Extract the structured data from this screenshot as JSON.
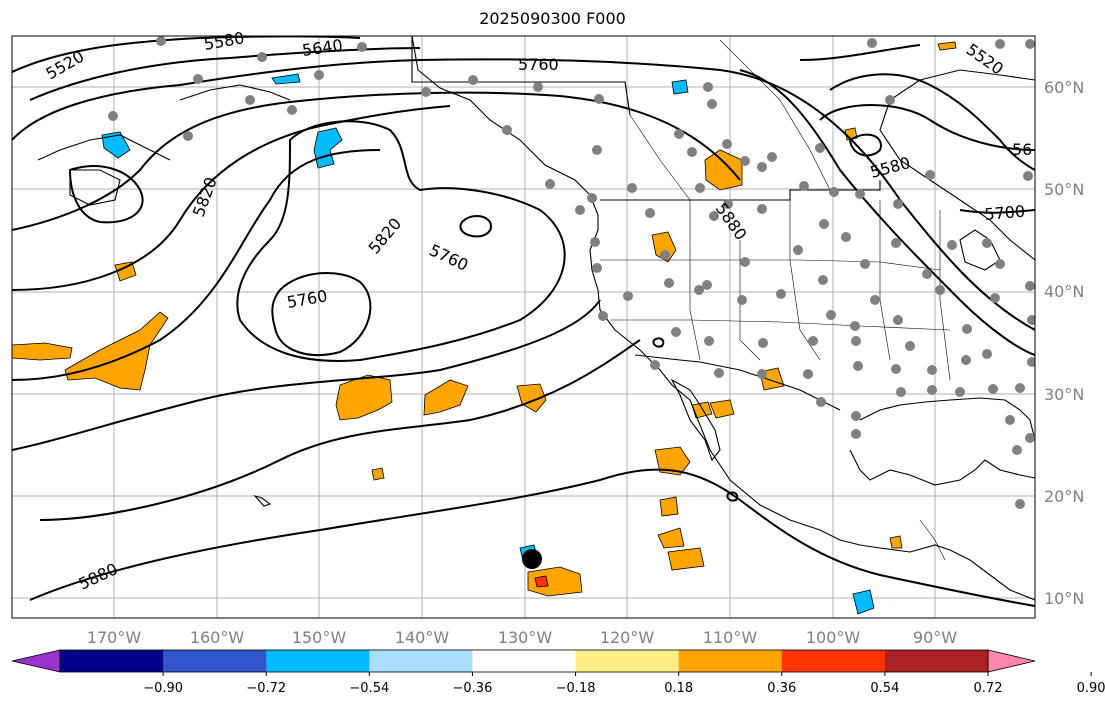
{
  "title": "2025090300 F000",
  "lat_labels": [
    "60°N",
    "50°N",
    "40°N",
    "30°N",
    "20°N",
    "10°N"
  ],
  "lon_labels": [
    "170°W",
    "160°W",
    "150°W",
    "140°W",
    "130°W",
    "120°W",
    "110°W",
    "100°W",
    "90°W"
  ],
  "contour_labels": [
    "5520",
    "5580",
    "5640",
    "5760",
    "5820",
    "5820",
    "5760",
    "5760",
    "5880",
    "5580",
    "5700",
    "5880",
    "5520",
    "56"
  ],
  "colorbar": {
    "colors": [
      "#9933cc",
      "#000088",
      "#3355cc",
      "#00bbff",
      "#aaddff",
      "#ffffff",
      "#ffee88",
      "#ffa500",
      "#ff3300",
      "#aa2222",
      "#ff88aa"
    ],
    "tick_labels": [
      "−0.90",
      "−0.72",
      "−0.54",
      "−0.36",
      "−0.18",
      "0.18",
      "0.36",
      "0.54",
      "0.72",
      "0.90"
    ]
  },
  "station_marker_color": "#808080"
}
